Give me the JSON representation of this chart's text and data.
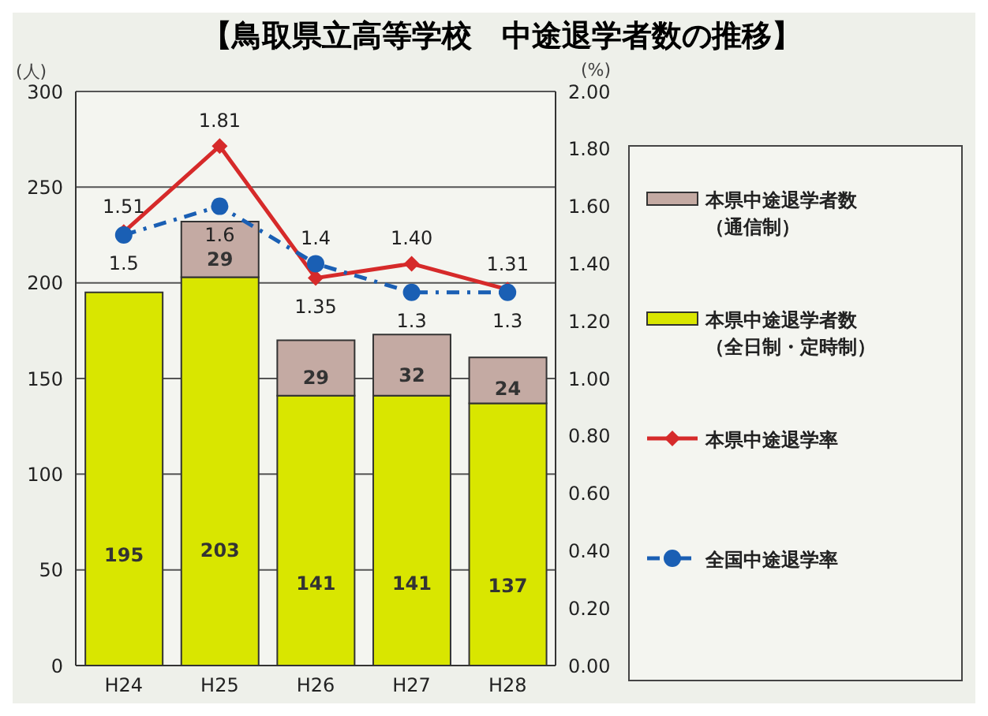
{
  "chart_data": {
    "type": "bar",
    "title": "【鳥取県立高等学校　中途退学者数の推移】",
    "ylabel": "(人)",
    "y2label": "(%)",
    "categories": [
      "H24",
      "H25",
      "H26",
      "H27",
      "H28"
    ],
    "stacked": true,
    "series": [
      {
        "name": "本県中途退学者数（全日制・定時制）",
        "color": "#d9e600",
        "values": [
          195,
          203,
          141,
          141,
          137
        ],
        "value_labels": [
          "195",
          "203",
          "141",
          "141",
          "137"
        ]
      },
      {
        "name": "本県中途退学者数（通信制）",
        "color": "#c4aaa3",
        "values": [
          null,
          29,
          29,
          32,
          24
        ],
        "value_labels": [
          null,
          "29",
          "29",
          "32",
          "24"
        ]
      },
      {
        "name": "本県中途退学率",
        "type": "line",
        "axis": "y2",
        "color": "#d62a2a",
        "marker": "diamond",
        "line_style": "solid",
        "values": [
          1.51,
          1.81,
          1.35,
          1.4,
          1.31
        ],
        "value_labels": [
          "1.51",
          "1.81",
          "1.35",
          "1.40",
          "1.31"
        ]
      },
      {
        "name": "全国中途退学率",
        "type": "line",
        "axis": "y2",
        "color": "#1a5fb4",
        "marker": "circle",
        "line_style": "dashed",
        "values": [
          1.5,
          1.6,
          1.4,
          1.3,
          1.3
        ],
        "value_labels": [
          "1.5",
          "1.6",
          "1.4",
          "1.3",
          "1.3"
        ]
      }
    ],
    "ylim": [
      0,
      300
    ],
    "yticks": [
      0,
      50,
      100,
      150,
      200,
      250,
      300
    ],
    "y2lim": [
      0,
      2
    ],
    "y2ticks": [
      {
        "value": 0,
        "label": "0.00"
      },
      {
        "value": 0.2,
        "label": "0.20"
      },
      {
        "value": 0.4,
        "label": "0.40"
      },
      {
        "value": 0.6,
        "label": "0.60"
      },
      {
        "value": 0.8,
        "label": "0.80"
      },
      {
        "value": 1,
        "label": "1.00"
      },
      {
        "value": 1.2,
        "label": "1.20"
      },
      {
        "value": 1.4,
        "label": "1.40"
      },
      {
        "value": 1.6,
        "label": "1.60"
      },
      {
        "value": 1.8,
        "label": "1.80"
      },
      {
        "value": 2,
        "label": "2.00"
      }
    ],
    "grid": "y",
    "legend": "right"
  }
}
